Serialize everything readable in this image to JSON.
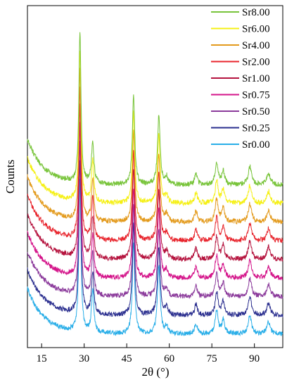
{
  "chart_data": {
    "type": "line",
    "xlabel": "2θ (°)",
    "ylabel": "Counts",
    "xlim": [
      10,
      100
    ],
    "xticks": [
      15,
      30,
      45,
      60,
      75,
      90
    ],
    "legend_position": "top-right",
    "grid": false,
    "peaks": [
      {
        "x": 28.5,
        "height": 1.0,
        "width": 0.45
      },
      {
        "x": 33.0,
        "height": 0.28,
        "width": 0.5
      },
      {
        "x": 47.4,
        "height": 0.6,
        "width": 0.5
      },
      {
        "x": 56.3,
        "height": 0.45,
        "width": 0.55
      },
      {
        "x": 59.0,
        "height": 0.05,
        "width": 0.6
      },
      {
        "x": 69.4,
        "height": 0.07,
        "width": 0.6
      },
      {
        "x": 76.7,
        "height": 0.15,
        "width": 0.6
      },
      {
        "x": 79.0,
        "height": 0.09,
        "width": 0.6
      },
      {
        "x": 88.4,
        "height": 0.12,
        "width": 0.7
      },
      {
        "x": 95.0,
        "height": 0.08,
        "width": 0.7
      }
    ],
    "series": [
      {
        "name": "Sr0.00",
        "color": "#29aee8",
        "offset": 0
      },
      {
        "name": "Sr0.25",
        "color": "#2b2f8f",
        "offset": 1
      },
      {
        "name": "Sr0.50",
        "color": "#8b3a9b",
        "offset": 2
      },
      {
        "name": "Sr0.75",
        "color": "#d4148a",
        "offset": 3
      },
      {
        "name": "Sr1.00",
        "color": "#b5133e",
        "offset": 4
      },
      {
        "name": "Sr2.00",
        "color": "#e8242c",
        "offset": 5
      },
      {
        "name": "Sr4.00",
        "color": "#e39a1c",
        "offset": 6
      },
      {
        "name": "Sr6.00",
        "color": "#f5f014",
        "offset": 7
      },
      {
        "name": "Sr8.00",
        "color": "#78c43a",
        "offset": 8
      }
    ]
  }
}
